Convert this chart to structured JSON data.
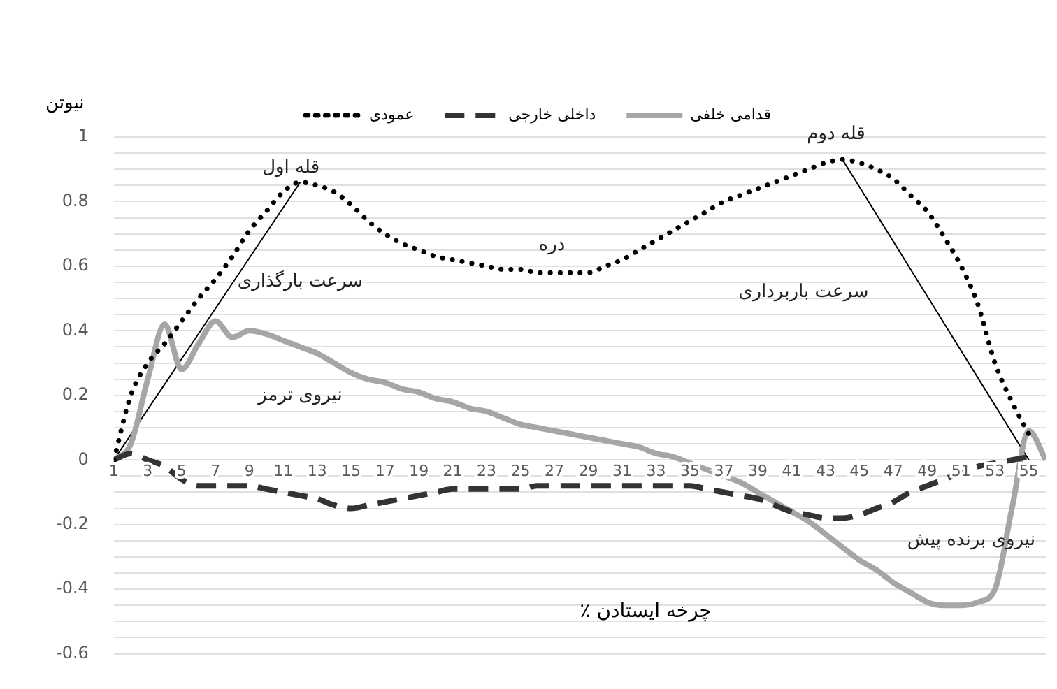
{
  "chart_data": {
    "type": "line",
    "xlabel": "٪ چرخه ایستادن",
    "ylabel": "نیوتن",
    "x": [
      1,
      2,
      3,
      4,
      5,
      6,
      7,
      8,
      9,
      10,
      11,
      12,
      13,
      14,
      15,
      16,
      17,
      18,
      19,
      20,
      21,
      22,
      23,
      24,
      25,
      26,
      27,
      28,
      29,
      30,
      31,
      32,
      33,
      34,
      35,
      36,
      37,
      38,
      39,
      40,
      41,
      42,
      43,
      44,
      45,
      46,
      47,
      48,
      49,
      50,
      51,
      52,
      53,
      54,
      55,
      56
    ],
    "xlim": [
      1,
      56
    ],
    "xticks": [
      1,
      3,
      5,
      7,
      9,
      11,
      13,
      15,
      17,
      19,
      21,
      23,
      25,
      27,
      29,
      31,
      33,
      35,
      37,
      39,
      41,
      43,
      45,
      47,
      49,
      51,
      53,
      55
    ],
    "ylim": [
      -0.6,
      1
    ],
    "yticks": [
      -0.6,
      {
        "value": -0.55,
        "label": null
      },
      {
        "value": -0.5,
        "label": null
      },
      {
        "value": -0.45,
        "label": null
      },
      -0.4,
      {
        "value": -0.35,
        "label": null
      },
      {
        "value": -0.3,
        "label": null
      },
      {
        "value": -0.25,
        "label": null
      },
      -0.2,
      {
        "value": -0.15,
        "label": null
      },
      {
        "value": -0.1,
        "label": null
      },
      {
        "value": -0.05,
        "label": null
      },
      0,
      {
        "value": 0.05,
        "label": null
      },
      {
        "value": 0.1,
        "label": null
      },
      {
        "value": 0.15,
        "label": null
      },
      0.2,
      {
        "value": 0.25,
        "label": null
      },
      {
        "value": 0.3,
        "label": null
      },
      {
        "value": 0.35,
        "label": null
      },
      0.4,
      {
        "value": 0.45,
        "label": null
      },
      {
        "value": 0.5,
        "label": null
      },
      {
        "value": 0.55,
        "label": null
      },
      0.6,
      {
        "value": 0.65,
        "label": null
      },
      {
        "value": 0.7,
        "label": null
      },
      {
        "value": 0.75,
        "label": null
      },
      0.8,
      {
        "value": 0.85,
        "label": null
      },
      {
        "value": 0.9,
        "label": null
      },
      {
        "value": 0.95,
        "label": null
      },
      1
    ],
    "grid": "y",
    "legend": "top",
    "marker": "none",
    "series": [
      {
        "name": "عمودی",
        "color": "#000000",
        "line_style": "dotted",
        "values": [
          0,
          0.2,
          0.3,
          0.36,
          0.43,
          0.5,
          0.56,
          0.63,
          0.71,
          0.77,
          0.83,
          0.86,
          0.85,
          0.83,
          0.79,
          0.74,
          0.7,
          0.67,
          0.65,
          0.63,
          0.62,
          0.61,
          0.6,
          0.59,
          0.59,
          0.58,
          0.58,
          0.58,
          0.58,
          0.6,
          0.62,
          0.65,
          0.68,
          0.71,
          0.74,
          0.77,
          0.8,
          0.82,
          0.84,
          0.86,
          0.88,
          0.9,
          0.92,
          0.93,
          0.92,
          0.9,
          0.87,
          0.82,
          0.77,
          0.69,
          0.6,
          0.48,
          0.3,
          0.18,
          0.08,
          null
        ]
      },
      {
        "name": "داخلی خارجی",
        "color": "#333333",
        "line_style": "dashed",
        "values": [
          0,
          0.02,
          0,
          -0.02,
          -0.06,
          -0.08,
          -0.08,
          -0.08,
          -0.08,
          -0.09,
          -0.1,
          -0.11,
          -0.12,
          -0.14,
          -0.15,
          -0.14,
          -0.13,
          -0.12,
          -0.11,
          -0.1,
          -0.09,
          -0.09,
          -0.09,
          -0.09,
          -0.09,
          -0.08,
          -0.08,
          -0.08,
          -0.08,
          -0.08,
          -0.08,
          -0.08,
          -0.08,
          -0.08,
          -0.08,
          -0.09,
          -0.1,
          -0.11,
          -0.12,
          -0.14,
          -0.16,
          -0.17,
          -0.18,
          -0.18,
          -0.17,
          -0.15,
          -0.13,
          -0.1,
          -0.08,
          -0.06,
          -0.04,
          -0.02,
          -0.01,
          0,
          0.01,
          null
        ]
      },
      {
        "name": "قدامی خلفی",
        "color": "#a6a6a6",
        "line_style": "solid",
        "values": [
          0,
          0.05,
          0.25,
          0.42,
          0.28,
          0.36,
          0.43,
          0.38,
          0.4,
          0.39,
          0.37,
          0.35,
          0.33,
          0.3,
          0.27,
          0.25,
          0.24,
          0.22,
          0.21,
          0.19,
          0.18,
          0.16,
          0.15,
          0.13,
          0.11,
          0.1,
          0.09,
          0.08,
          0.07,
          0.06,
          0.05,
          0.04,
          0.02,
          0.01,
          -0.01,
          -0.03,
          -0.05,
          -0.07,
          -0.1,
          -0.13,
          -0.16,
          -0.19,
          -0.23,
          -0.27,
          -0.31,
          -0.34,
          -0.38,
          -0.41,
          -0.44,
          -0.45,
          -0.45,
          -0.44,
          -0.4,
          -0.15,
          0.09,
          0
        ]
      },
      {
        "color": "#000000",
        "line_style": "solid",
        "x": [
          1,
          12
        ],
        "values": [
          0,
          0.86
        ]
      },
      {
        "color": "#000000",
        "line_style": "solid",
        "x": [
          44,
          55
        ],
        "values": [
          0.93,
          0
        ]
      }
    ],
    "annotations": [
      "قله اول",
      "قله دوم",
      "دره",
      "سرعت بارگذاری",
      "سرعت باربرداری",
      "نیروی ترمز",
      "نیروی برنده پیش"
    ]
  }
}
